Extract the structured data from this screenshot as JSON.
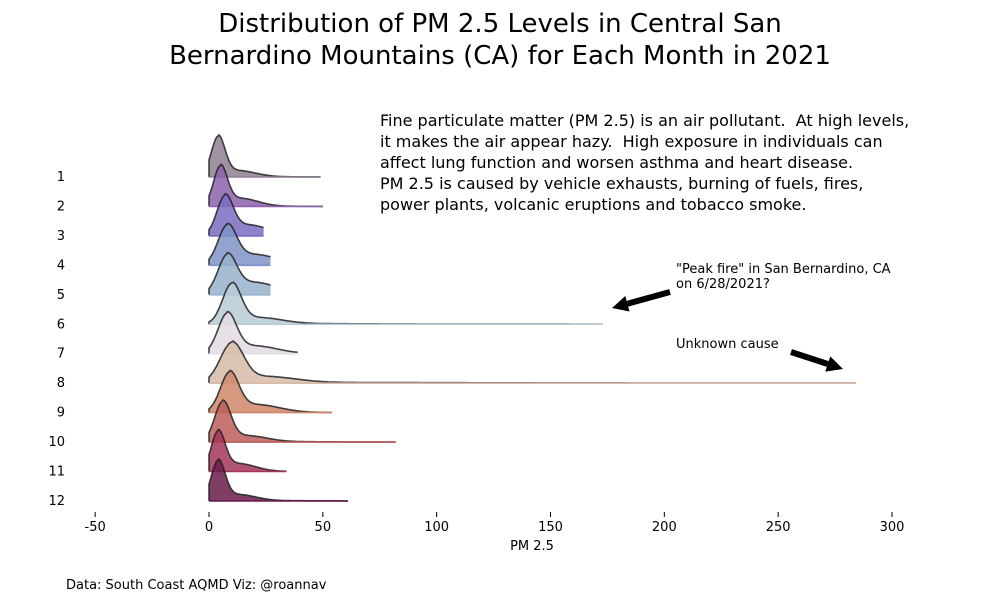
{
  "chart_data": {
    "type": "ridgeline",
    "title_line1": "Distribution of PM 2.5 Levels in Central San",
    "title_line2": "Bernardino Mountains (CA) for Each Month in 2021",
    "xlabel": "PM 2.5",
    "xlim": [
      -50,
      300
    ],
    "xticks": [
      "-50",
      "0",
      "50",
      "100",
      "150",
      "200",
      "250",
      "300"
    ],
    "xtick_values": [
      -50,
      0,
      50,
      100,
      150,
      200,
      250,
      300
    ],
    "grid": false,
    "months": [
      {
        "label": "1",
        "color": "#8e7f90",
        "max": 49,
        "mode": 4,
        "spread": 3,
        "tail": 0.15
      },
      {
        "label": "2",
        "color": "#8c62ae",
        "max": 50,
        "mode": 5,
        "spread": 3,
        "tail": 0.2
      },
      {
        "label": "3",
        "color": "#7a6cc2",
        "max": 24,
        "mode": 7,
        "spread": 3.5,
        "tail": 0.3
      },
      {
        "label": "4",
        "color": "#7f93c8",
        "max": 27,
        "mode": 8,
        "spread": 4,
        "tail": 0.3
      },
      {
        "label": "5",
        "color": "#97b2cc",
        "max": 27,
        "mode": 8,
        "spread": 4,
        "tail": 0.35
      },
      {
        "label": "6",
        "color": "#b9cbd5",
        "max": 173,
        "mode": 10,
        "spread": 4,
        "tail": 0.15
      },
      {
        "label": "7",
        "color": "#e4dbe4",
        "max": 39,
        "mode": 8,
        "spread": 4,
        "tail": 0.2
      },
      {
        "label": "8",
        "color": "#d7bba8",
        "max": 284,
        "mode": 10,
        "spread": 5,
        "tail": 0.15
      },
      {
        "label": "9",
        "color": "#d0866a",
        "max": 54,
        "mode": 9,
        "spread": 4,
        "tail": 0.2
      },
      {
        "label": "10",
        "color": "#bd5e5a",
        "max": 82,
        "mode": 6,
        "spread": 3.5,
        "tail": 0.15
      },
      {
        "label": "11",
        "color": "#a33658",
        "max": 34,
        "mode": 4,
        "spread": 3,
        "tail": 0.2
      },
      {
        "label": "12",
        "color": "#6a1c4c",
        "max": 61,
        "mode": 4,
        "spread": 3,
        "tail": 0.15
      }
    ],
    "annotations": [
      {
        "text": "\"Peak fire\" in San Bernardino, CA\non 6/28/2021?",
        "target_month": "6",
        "target_x": 173
      },
      {
        "text": "Unknown cause",
        "target_month": "8",
        "target_x": 284
      }
    ]
  },
  "note": "Fine particulate matter (PM 2.5) is an air pollutant.  At high levels,\nit makes the air appear hazy.  High exposure in individuals can\naffect lung function and worsen asthma and heart disease.\nPM 2.5 is caused by vehicle exhausts, burning of fuels, fires,\npower plants, volcanic eruptions and tobacco smoke.",
  "credit": "Data: South Coast AQMD   Viz: @roannav"
}
